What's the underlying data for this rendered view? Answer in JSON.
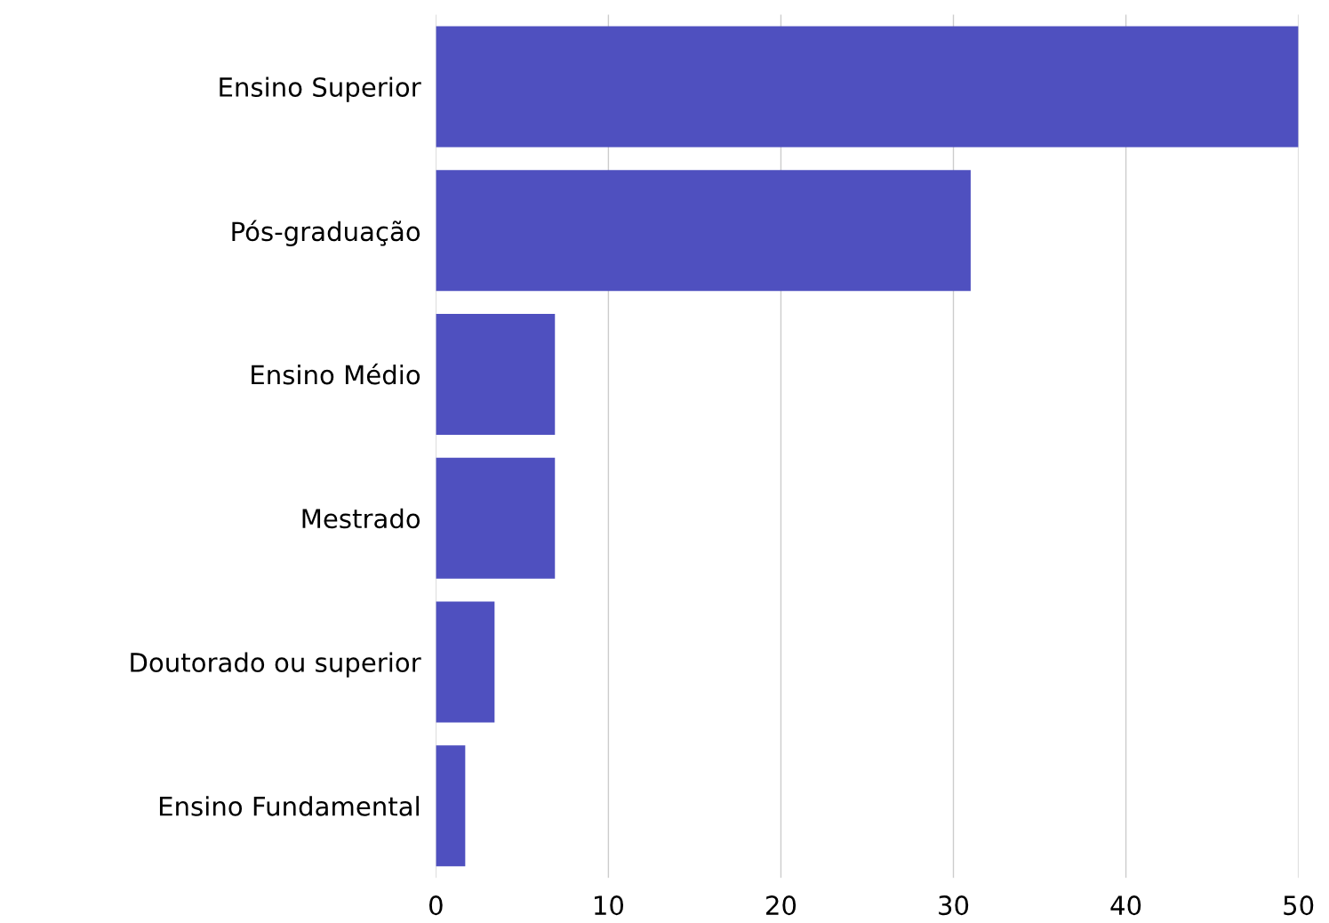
{
  "chart_data": {
    "type": "bar",
    "orientation": "horizontal",
    "categories": [
      "Ensino Superior",
      "Pós-graduação",
      "Ensino Médio",
      "Mestrado",
      "Doutorado ou superior",
      "Ensino Fundamental"
    ],
    "values": [
      50,
      31,
      6.9,
      6.9,
      3.4,
      1.7
    ],
    "color": "#4f50bf",
    "xlim": [
      0,
      50
    ],
    "xticks": [
      0,
      10,
      20,
      30,
      40,
      50
    ],
    "grid": "x"
  }
}
